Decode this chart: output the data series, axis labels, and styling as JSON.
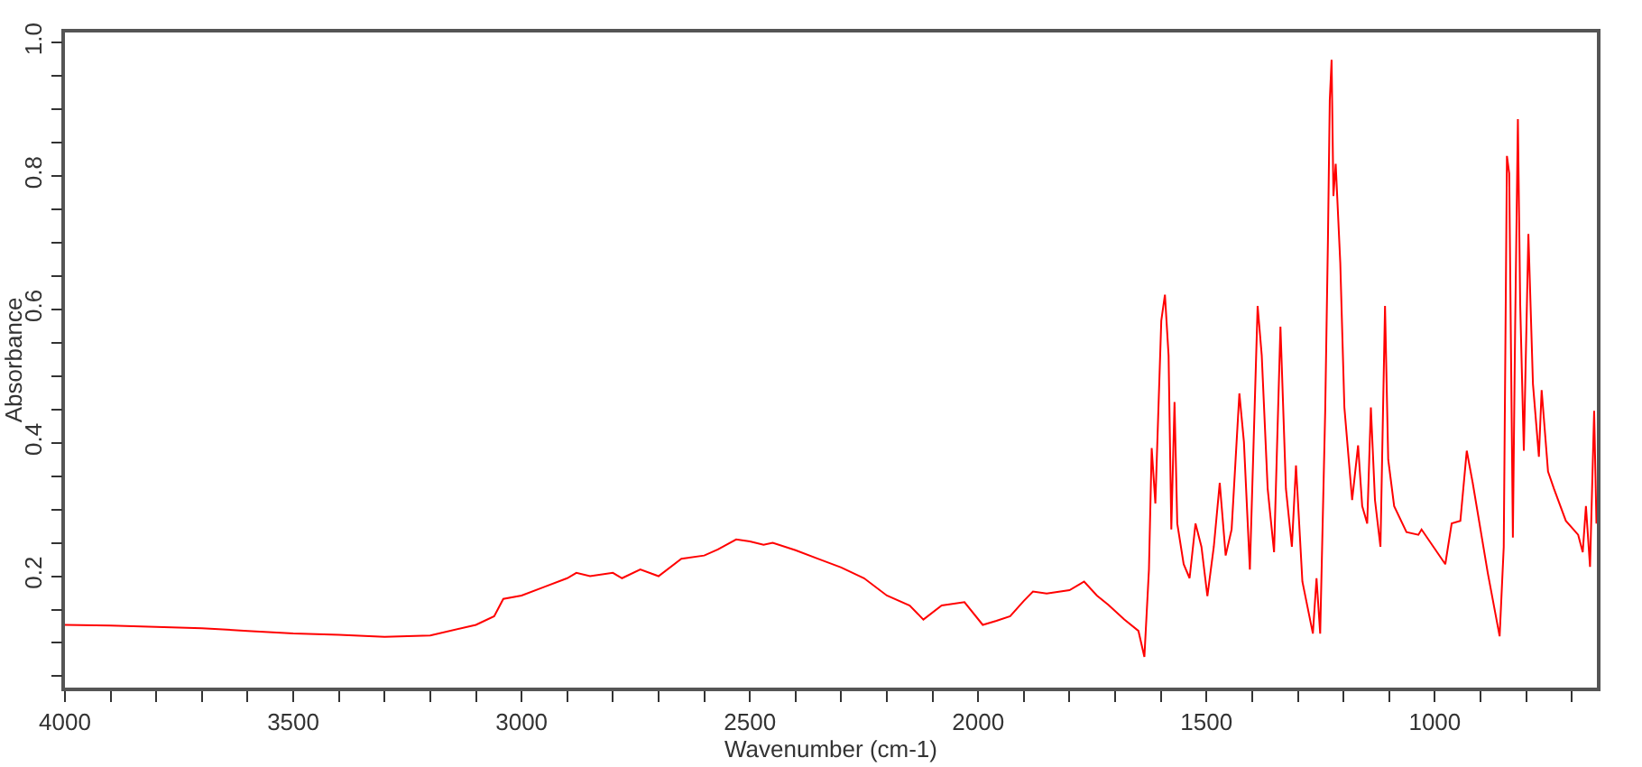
{
  "chart_data": {
    "type": "line",
    "xlabel": "Wavenumber (cm-1)",
    "ylabel": "Absorbance",
    "x": [
      4000,
      3900,
      3800,
      3700,
      3600,
      3500,
      3400,
      3300,
      3200,
      3100,
      3060,
      3040,
      3000,
      2950,
      2900,
      2880,
      2850,
      2800,
      2780,
      2740,
      2700,
      2650,
      2600,
      2570,
      2530,
      2500,
      2470,
      2450,
      2400,
      2350,
      2300,
      2250,
      2200,
      2150,
      2120,
      2080,
      2030,
      1990,
      1960,
      1930,
      1900,
      1880,
      1850,
      1800,
      1780,
      1768,
      1740,
      1715,
      1680,
      1649,
      1636,
      1626,
      1620,
      1612,
      1599,
      1591,
      1583,
      1577,
      1570,
      1564,
      1550,
      1537,
      1524,
      1511,
      1498,
      1484,
      1471,
      1458,
      1445,
      1428,
      1418,
      1405,
      1388,
      1379,
      1366,
      1352,
      1338,
      1326,
      1313,
      1304,
      1290,
      1267,
      1259,
      1251,
      1240,
      1234,
      1230,
      1226,
      1222,
      1217,
      1207,
      1198,
      1181,
      1168,
      1159,
      1148,
      1140,
      1131,
      1119,
      1109,
      1102,
      1089,
      1062,
      1036,
      1029,
      1003,
      977,
      963,
      944,
      930,
      917,
      884,
      858,
      849,
      842,
      837,
      829,
      824,
      818,
      813,
      805,
      795,
      785,
      772,
      766,
      752,
      739,
      713,
      686,
      676,
      669,
      660,
      651,
      646
    ],
    "series": [
      {
        "color": "#ff0000",
        "values": [
          0.127,
          0.126,
          0.124,
          0.122,
          0.118,
          0.114,
          0.112,
          0.109,
          0.111,
          0.127,
          0.14,
          0.166,
          0.171,
          0.184,
          0.197,
          0.205,
          0.2,
          0.205,
          0.197,
          0.21,
          0.2,
          0.226,
          0.231,
          0.24,
          0.255,
          0.252,
          0.247,
          0.25,
          0.239,
          0.226,
          0.213,
          0.197,
          0.171,
          0.156,
          0.135,
          0.156,
          0.161,
          0.127,
          0.133,
          0.14,
          0.163,
          0.177,
          0.174,
          0.179,
          0.187,
          0.192,
          0.171,
          0.157,
          0.135,
          0.118,
          0.079,
          0.21,
          0.392,
          0.309,
          0.583,
          0.622,
          0.531,
          0.27,
          0.461,
          0.279,
          0.218,
          0.197,
          0.279,
          0.244,
          0.17,
          0.244,
          0.34,
          0.231,
          0.27,
          0.474,
          0.401,
          0.21,
          0.605,
          0.531,
          0.331,
          0.236,
          0.574,
          0.331,
          0.244,
          0.366,
          0.192,
          0.114,
          0.197,
          0.114,
          0.448,
          0.705,
          0.913,
          0.974,
          0.77,
          0.818,
          0.67,
          0.453,
          0.314,
          0.396,
          0.305,
          0.279,
          0.453,
          0.314,
          0.244,
          0.605,
          0.375,
          0.305,
          0.266,
          0.262,
          0.27,
          0.244,
          0.218,
          0.279,
          0.283,
          0.388,
          0.34,
          0.205,
          0.11,
          0.244,
          0.83,
          0.804,
          0.258,
          0.574,
          0.885,
          0.609,
          0.388,
          0.713,
          0.488,
          0.379,
          0.479,
          0.357,
          0.331,
          0.283,
          0.262,
          0.236,
          0.305,
          0.214,
          0.448,
          0.279
        ]
      }
    ],
    "xlim": [
      4000,
      645
    ],
    "xticks": [
      4000,
      {
        "value": 3900,
        "label": null
      },
      {
        "value": 3800,
        "label": null
      },
      {
        "value": 3700,
        "label": null
      },
      {
        "value": 3600,
        "label": null
      },
      3500,
      {
        "value": 3400,
        "label": null
      },
      {
        "value": 3300,
        "label": null
      },
      {
        "value": 3200,
        "label": null
      },
      {
        "value": 3100,
        "label": null
      },
      3000,
      {
        "value": 2900,
        "label": null
      },
      {
        "value": 2800,
        "label": null
      },
      {
        "value": 2700,
        "label": null
      },
      {
        "value": 2600,
        "label": null
      },
      2500,
      {
        "value": 2400,
        "label": null
      },
      {
        "value": 2300,
        "label": null
      },
      {
        "value": 2200,
        "label": null
      },
      {
        "value": 2100,
        "label": null
      },
      2000,
      {
        "value": 1900,
        "label": null
      },
      {
        "value": 1800,
        "label": null
      },
      {
        "value": 1700,
        "label": null
      },
      {
        "value": 1600,
        "label": null
      },
      1500,
      {
        "value": 1400,
        "label": null
      },
      {
        "value": 1300,
        "label": null
      },
      {
        "value": 1200,
        "label": null
      },
      {
        "value": 1100,
        "label": null
      },
      1000,
      {
        "value": 900,
        "label": null
      },
      {
        "value": 800,
        "label": null
      },
      {
        "value": 700,
        "label": null
      }
    ],
    "ylim": [
      0.033,
      1.015
    ],
    "yticks": [
      {
        "value": 0.05,
        "label": null
      },
      {
        "value": 0.1,
        "label": null
      },
      {
        "value": 0.15,
        "label": null
      },
      {
        "value": 0.2,
        "label": "0.2"
      },
      {
        "value": 0.25,
        "label": null
      },
      {
        "value": 0.3,
        "label": null
      },
      {
        "value": 0.35,
        "label": null
      },
      {
        "value": 0.4,
        "label": "0.4"
      },
      {
        "value": 0.45,
        "label": null
      },
      {
        "value": 0.5,
        "label": null
      },
      {
        "value": 0.55,
        "label": null
      },
      {
        "value": 0.6,
        "label": "0.6"
      },
      {
        "value": 0.65,
        "label": null
      },
      {
        "value": 0.7,
        "label": null
      },
      {
        "value": 0.75,
        "label": null
      },
      {
        "value": 0.8,
        "label": "0.8"
      },
      {
        "value": 0.85,
        "label": null
      },
      {
        "value": 0.9,
        "label": null
      },
      {
        "value": 0.95,
        "label": null
      },
      {
        "value": 1.0,
        "label": "1.0"
      }
    ],
    "grid": false,
    "marker": "none",
    "line_style": "solid"
  }
}
